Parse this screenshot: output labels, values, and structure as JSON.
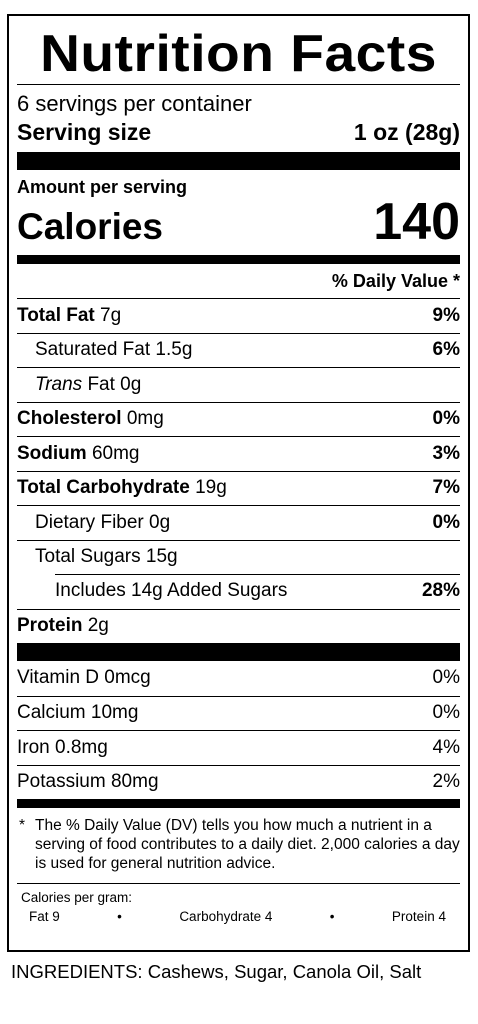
{
  "title": "Nutrition Facts",
  "servings_per_container": "6 servings per container",
  "serving_size": {
    "label": "Serving size",
    "value": "1 oz (28g)"
  },
  "amount_per_serving": "Amount per serving",
  "calories": {
    "label": "Calories",
    "value": "140"
  },
  "dv_header": "% Daily Value *",
  "nutrients": {
    "total_fat": {
      "label": "Total Fat",
      "amount": "7g",
      "pct": "9%"
    },
    "saturated_fat": {
      "label": "Saturated Fat 1.5g",
      "pct": "6%"
    },
    "trans_fat": {
      "label_italic": "Trans",
      "label_rest": " Fat 0g"
    },
    "cholesterol": {
      "label": "Cholesterol",
      "amount": "0mg",
      "pct": "0%"
    },
    "sodium": {
      "label": "Sodium",
      "amount": "60mg",
      "pct": "3%"
    },
    "total_carb": {
      "label": "Total Carbohydrate",
      "amount": "19g",
      "pct": "7%"
    },
    "dietary_fiber": {
      "label": "Dietary Fiber 0g",
      "pct": "0%"
    },
    "total_sugars": {
      "label": "Total Sugars 15g"
    },
    "added_sugars": {
      "label": "Includes 14g Added Sugars",
      "pct": "28%"
    },
    "protein": {
      "label": "Protein",
      "amount": "2g"
    }
  },
  "vitamins": [
    {
      "label": "Vitamin D 0mcg",
      "pct": "0%"
    },
    {
      "label": "Calcium 10mg",
      "pct": "0%"
    },
    {
      "label": "Iron 0.8mg",
      "pct": "4%"
    },
    {
      "label": "Potassium 80mg",
      "pct": "2%"
    }
  ],
  "footnote": {
    "star": "*",
    "text": "The % Daily Value (DV) tells you how much a nutrient in a serving of food contributes to a daily diet. 2,000 calories a day is used for general nutrition advice."
  },
  "calories_per_gram": {
    "label": "Calories per gram:",
    "fat": "Fat 9",
    "bullet": "•",
    "carb": "Carbohydrate 4",
    "protein": "Protein 4"
  },
  "ingredients": "INGREDIENTS: Cashews, Sugar, Canola Oil, Salt"
}
